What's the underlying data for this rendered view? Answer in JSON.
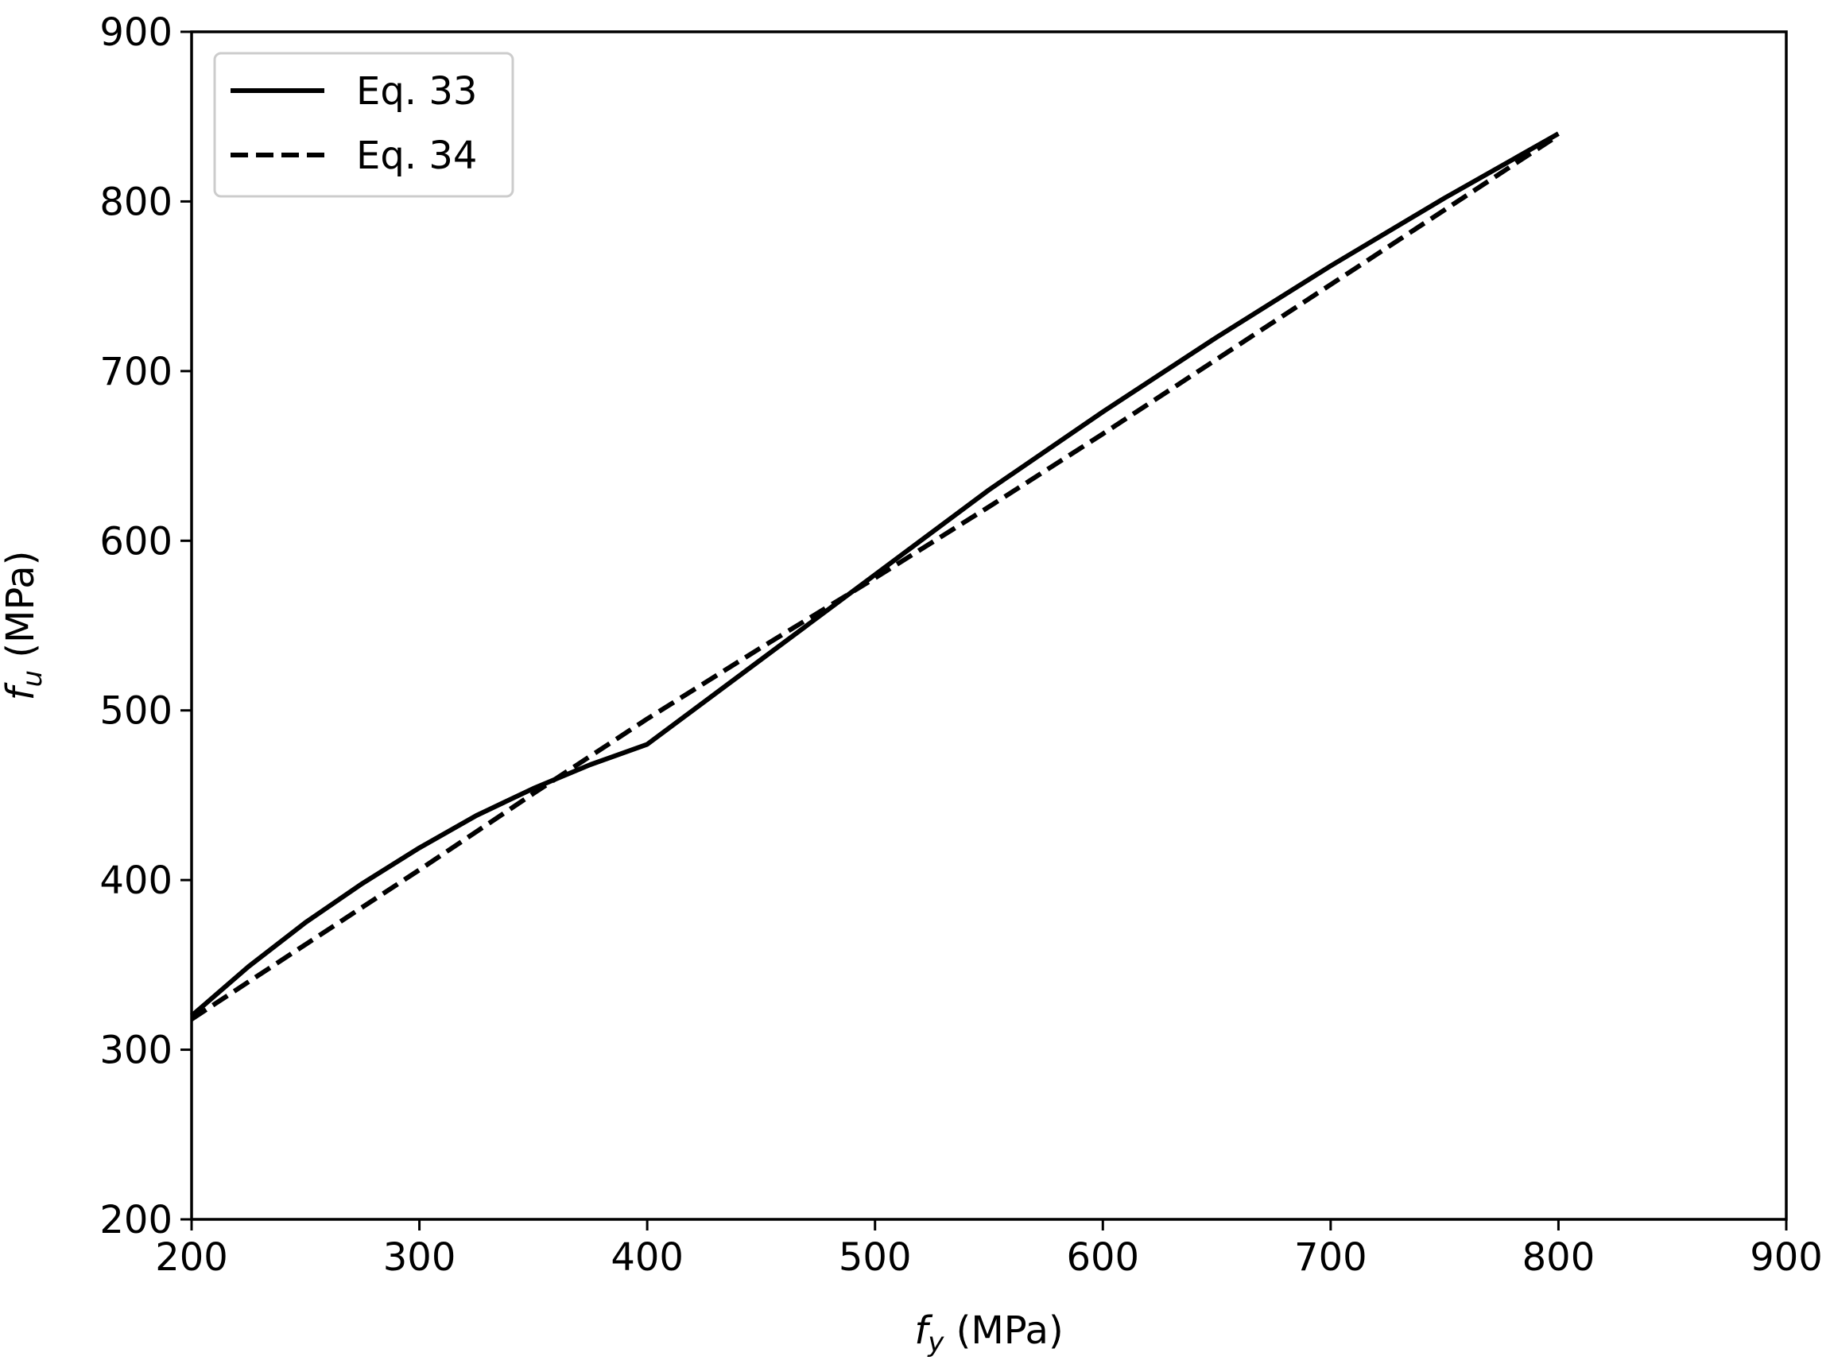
{
  "chart_data": {
    "type": "line",
    "title": "",
    "xlabel": {
      "var": "f",
      "sub": "y",
      "unit": " (MPa)"
    },
    "ylabel": {
      "var": "f",
      "sub": "u",
      "unit": " (MPa)"
    },
    "xlim": [
      200,
      900
    ],
    "ylim": [
      200,
      900
    ],
    "xticks": [
      200,
      300,
      400,
      500,
      600,
      700,
      800,
      900
    ],
    "yticks": [
      200,
      300,
      400,
      500,
      600,
      700,
      800,
      900
    ],
    "grid": false,
    "legend_position": "upper-left",
    "series": [
      {
        "name": "Eq. 33",
        "style": "solid",
        "color": "#000000",
        "x": [
          200,
          225,
          250,
          275,
          300,
          325,
          350,
          375,
          400,
          450,
          500,
          550,
          600,
          650,
          700,
          750,
          800
        ],
        "y": [
          320,
          349,
          375,
          398,
          419,
          438,
          454,
          468,
          480,
          530,
          580,
          630,
          676,
          720,
          762,
          802,
          840
        ]
      },
      {
        "name": "Eq. 34",
        "style": "dashed",
        "color": "#000000",
        "x": [
          200,
          250,
          300,
          350,
          400,
          450,
          500,
          550,
          600,
          650,
          700,
          750,
          800
        ],
        "y": [
          318,
          362,
          406,
          451,
          495,
          537,
          578,
          620,
          663,
          707,
          751,
          795,
          839
        ]
      }
    ]
  }
}
